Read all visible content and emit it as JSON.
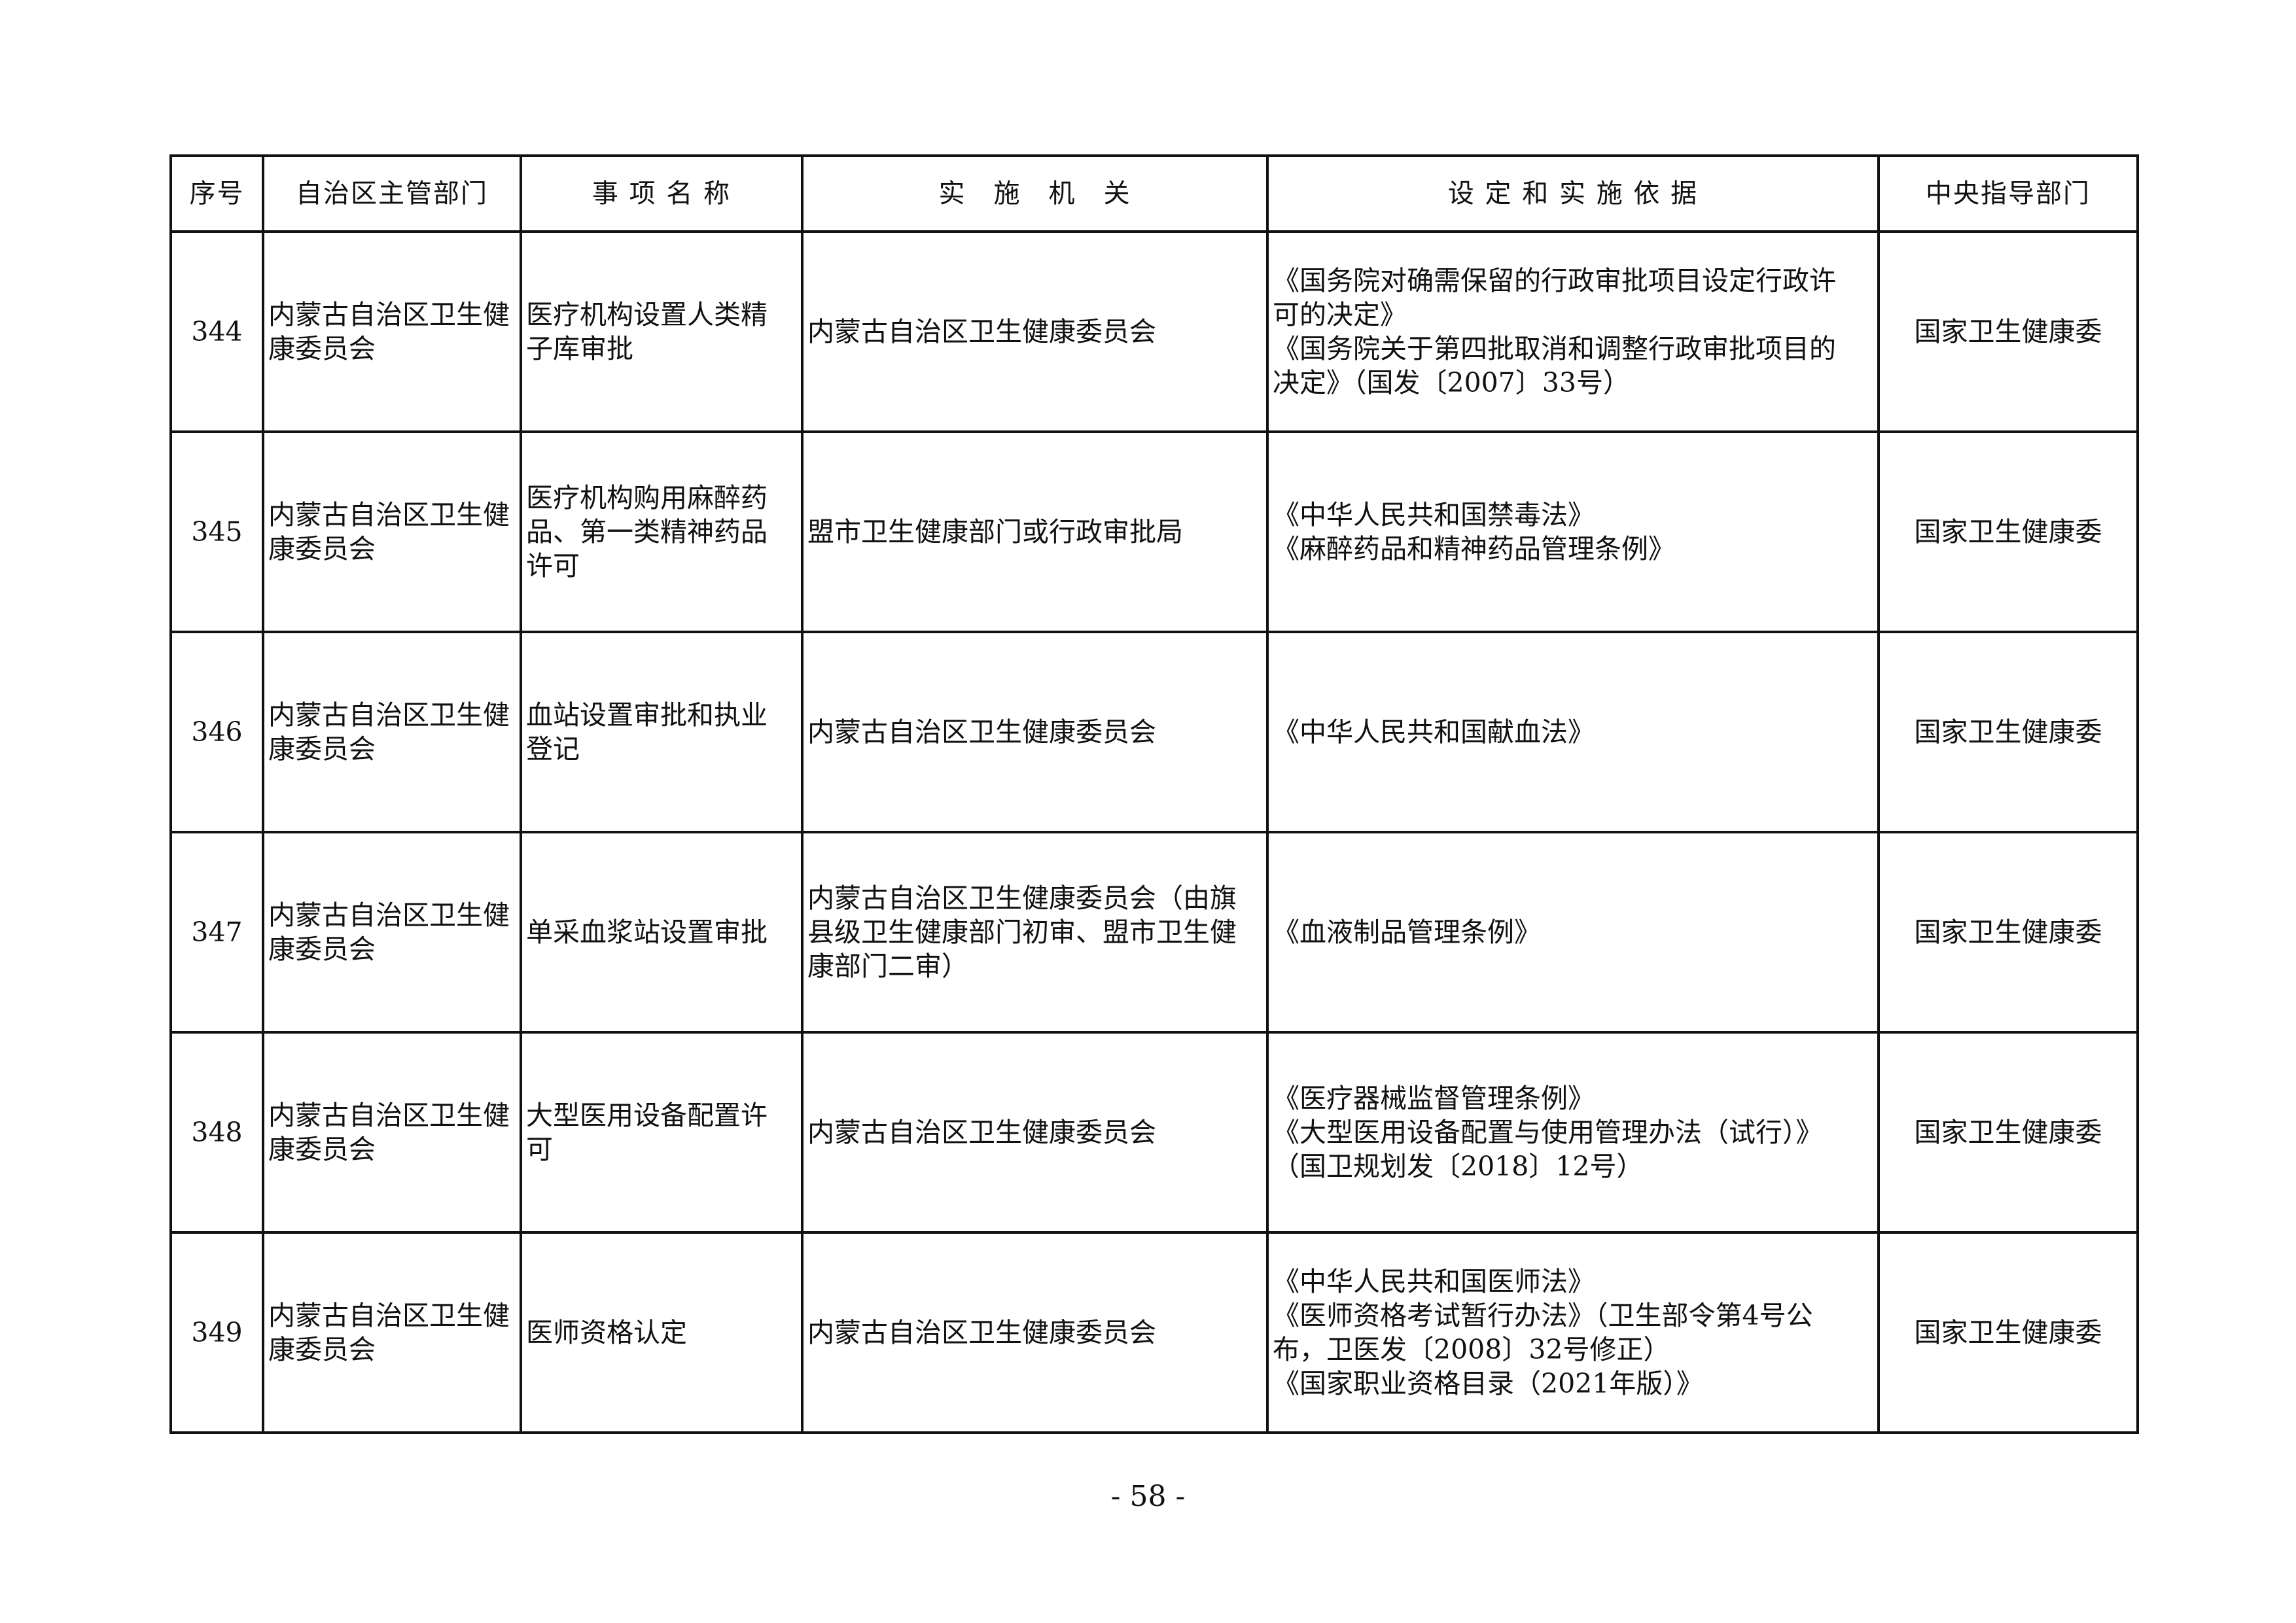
{
  "headers": [
    "序号",
    "自治区主管部门",
    "事 项 名 称",
    "实　施　机　关",
    "设 定 和 实 施 依 据",
    "中央指导部门"
  ],
  "rows": [
    {
      "no": "344",
      "dept": "内蒙古自治区卫生健\n康委员会",
      "item": "医疗机构设置人类精\n子库审批",
      "agency": "内蒙古自治区卫生健康委员会",
      "basis": "《国务院对确需保留的行政审批项目设定行政许\n可的决定》\n《国务院关于第四批取消和调整行政审批项目的\n决定》（国发〔2007〕33号）",
      "central": "国家卫生健康委"
    },
    {
      "no": "345",
      "dept": "内蒙古自治区卫生健\n康委员会",
      "item": "医疗机构购用麻醉药\n品、第一类精神药品\n许可",
      "agency": "盟市卫生健康部门或行政审批局",
      "basis": "《中华人民共和国禁毒法》\n《麻醉药品和精神药品管理条例》",
      "central": "国家卫生健康委"
    },
    {
      "no": "346",
      "dept": "内蒙古自治区卫生健\n康委员会",
      "item": "血站设置审批和执业\n登记",
      "agency": "内蒙古自治区卫生健康委员会",
      "basis": "《中华人民共和国献血法》",
      "central": "国家卫生健康委"
    },
    {
      "no": "347",
      "dept": "内蒙古自治区卫生健\n康委员会",
      "item": "单采血浆站设置审批",
      "agency": "内蒙古自治区卫生健康委员会（由旗\n县级卫生健康部门初审、盟市卫生健\n康部门二审）",
      "basis": "《血液制品管理条例》",
      "central": "国家卫生健康委"
    },
    {
      "no": "348",
      "dept": "内蒙古自治区卫生健\n康委员会",
      "item": "大型医用设备配置许\n可",
      "agency": "内蒙古自治区卫生健康委员会",
      "basis": "《医疗器械监督管理条例》\n《大型医用设备配置与使用管理办法（试行）》\n（国卫规划发〔2018〕12号）",
      "central": "国家卫生健康委"
    },
    {
      "no": "349",
      "dept": "内蒙古自治区卫生健\n康委员会",
      "item": "医师资格认定",
      "agency": "内蒙古自治区卫生健康委员会",
      "basis": "《中华人民共和国医师法》\n《医师资格考试暂行办法》（卫生部令第4号公\n布，卫医发〔2008〕32号修正）\n《国家职业资格目录（2021年版）》",
      "central": "国家卫生健康委"
    }
  ],
  "page_number": "- 58 -"
}
